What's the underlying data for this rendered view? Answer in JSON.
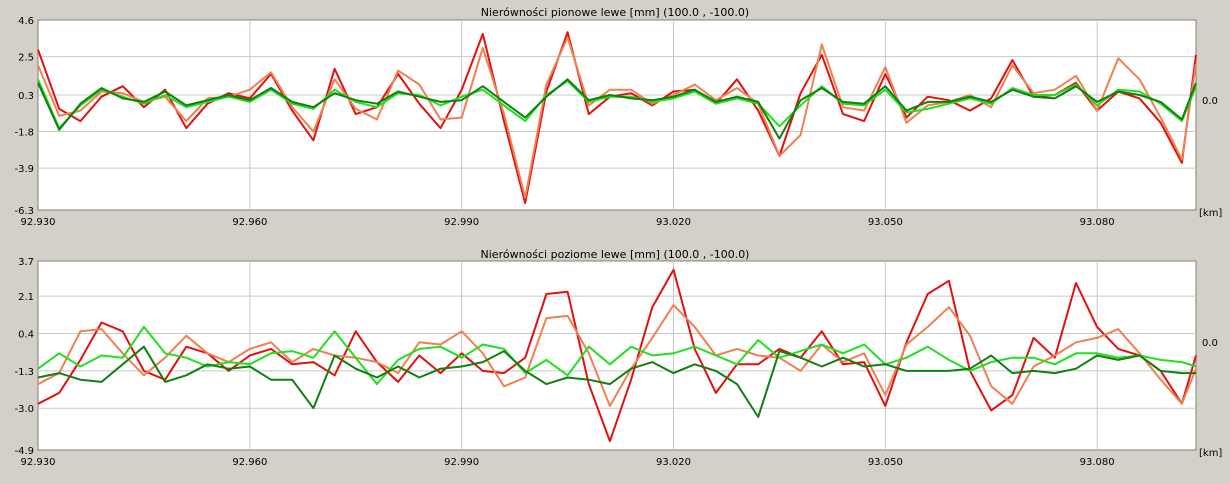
{
  "colors": {
    "background": "#d4d0c8",
    "plot_bg": "#ffffff",
    "grid": "#c8c8c8",
    "red": "#e31010",
    "orange": "#f08050",
    "light_green": "#20e020",
    "dark_green": "#108010"
  },
  "chart_data": [
    {
      "type": "line",
      "title": "Nierówności pionowe lewe [mm]  (100.0 , -100.0)",
      "xlabel": "[km]",
      "ylabel": "",
      "x_ticks": [
        "92.930",
        "92.960",
        "92.990",
        "93.020",
        "93.050",
        "93.080"
      ],
      "y_ticks": [
        "4.6",
        "2.5",
        "0.3",
        "-1.8",
        "-3.9",
        "-6.3"
      ],
      "right_label": "0.0",
      "xlim": [
        92.93,
        93.094
      ],
      "ylim": [
        -6.3,
        4.6
      ],
      "grid": true,
      "x": [
        92.93,
        92.933,
        92.936,
        92.939,
        92.942,
        92.945,
        92.948,
        92.951,
        92.954,
        92.957,
        92.96,
        92.963,
        92.966,
        92.969,
        92.972,
        92.975,
        92.978,
        92.981,
        92.984,
        92.987,
        92.99,
        92.993,
        92.996,
        92.999,
        93.002,
        93.005,
        93.008,
        93.011,
        93.014,
        93.017,
        93.02,
        93.023,
        93.026,
        93.029,
        93.032,
        93.035,
        93.038,
        93.041,
        93.044,
        93.047,
        93.05,
        93.053,
        93.056,
        93.059,
        93.062,
        93.065,
        93.068,
        93.071,
        93.074,
        93.077,
        93.08,
        93.083,
        93.086,
        93.089,
        93.092,
        93.094
      ],
      "series": [
        {
          "color": "#e31010",
          "values": [
            2.9,
            -0.5,
            -1.2,
            0.2,
            0.8,
            -0.4,
            0.6,
            -1.6,
            -0.2,
            0.4,
            0.1,
            1.5,
            -0.6,
            -2.3,
            1.8,
            -0.8,
            -0.4,
            1.5,
            -0.2,
            -1.6,
            0.6,
            3.8,
            -1.2,
            -5.9,
            0.5,
            3.9,
            -0.8,
            0.2,
            0.4,
            -0.3,
            0.5,
            0.6,
            -0.2,
            1.2,
            -0.6,
            -3.2,
            0.4,
            2.6,
            -0.8,
            -1.2,
            1.5,
            -1.0,
            0.2,
            0.0,
            -0.6,
            0.1,
            2.3,
            0.2,
            0.3,
            1.0,
            -0.6,
            0.5,
            0.1,
            -1.3,
            -3.6,
            2.6
          ]
        },
        {
          "color": "#f08050",
          "values": [
            2.0,
            -0.9,
            -0.6,
            0.5,
            0.4,
            -0.1,
            0.2,
            -1.2,
            0.1,
            0.2,
            0.6,
            1.6,
            -0.4,
            -1.8,
            1.2,
            -0.5,
            -1.1,
            1.7,
            0.9,
            -1.1,
            -1.0,
            3.0,
            -0.8,
            -5.6,
            0.9,
            3.6,
            -0.3,
            0.6,
            0.6,
            -0.2,
            0.3,
            0.9,
            0.0,
            0.7,
            -0.2,
            -3.2,
            -2.0,
            3.2,
            -0.4,
            -0.6,
            1.9,
            -1.3,
            -0.3,
            -0.1,
            0.3,
            -0.4,
            2.0,
            0.4,
            0.6,
            1.4,
            -0.6,
            2.4,
            1.2,
            -1.0,
            -3.4,
            2.1
          ]
        },
        {
          "color": "#20e020",
          "values": [
            1.2,
            -1.6,
            -0.3,
            0.6,
            0.2,
            -0.2,
            0.3,
            -0.4,
            -0.1,
            0.2,
            -0.1,
            0.6,
            -0.2,
            -0.5,
            0.6,
            -0.1,
            -0.4,
            0.4,
            0.3,
            -0.3,
            0.2,
            0.6,
            -0.3,
            -1.2,
            0.3,
            1.1,
            -0.1,
            0.2,
            0.2,
            -0.1,
            0.1,
            0.5,
            -0.2,
            0.1,
            -0.2,
            -1.5,
            -0.3,
            0.8,
            -0.2,
            -0.3,
            0.6,
            -0.7,
            -0.5,
            -0.2,
            0.1,
            -0.2,
            0.7,
            0.3,
            0.3,
            0.9,
            -0.3,
            0.6,
            0.5,
            -0.2,
            -1.2,
            0.8
          ]
        },
        {
          "color": "#108010",
          "values": [
            1.0,
            -1.7,
            -0.2,
            0.7,
            0.1,
            -0.1,
            0.5,
            -0.3,
            0.0,
            0.3,
            0.0,
            0.7,
            -0.1,
            -0.4,
            0.4,
            0.0,
            -0.2,
            0.5,
            0.2,
            -0.1,
            0.0,
            0.8,
            -0.1,
            -1.0,
            0.2,
            1.2,
            0.0,
            0.3,
            0.1,
            0.0,
            0.2,
            0.6,
            -0.1,
            0.2,
            -0.1,
            -2.2,
            0.0,
            0.7,
            -0.1,
            -0.2,
            0.8,
            -0.6,
            -0.1,
            -0.1,
            0.2,
            -0.1,
            0.6,
            0.2,
            0.1,
            0.8,
            -0.1,
            0.5,
            0.3,
            -0.1,
            -1.1,
            1.0
          ]
        }
      ]
    },
    {
      "type": "line",
      "title": "Nierówności poziome lewe [mm]  (100.0 , -100.0)",
      "xlabel": "[km]",
      "ylabel": "",
      "x_ticks": [
        "92.930",
        "92.960",
        "92.990",
        "93.020",
        "93.050",
        "93.080"
      ],
      "y_ticks": [
        "3.7",
        "2.1",
        "0.4",
        "-1.3",
        "-3.0",
        "-4.9"
      ],
      "right_label": "0.0",
      "xlim": [
        92.93,
        93.094
      ],
      "ylim": [
        -4.9,
        3.7
      ],
      "grid": true,
      "x": [
        92.93,
        92.933,
        92.936,
        92.939,
        92.942,
        92.945,
        92.948,
        92.951,
        92.954,
        92.957,
        92.96,
        92.963,
        92.966,
        92.969,
        92.972,
        92.975,
        92.978,
        92.981,
        92.984,
        92.987,
        92.99,
        92.993,
        92.996,
        92.999,
        93.002,
        93.005,
        93.008,
        93.011,
        93.014,
        93.017,
        93.02,
        93.023,
        93.026,
        93.029,
        93.032,
        93.035,
        93.038,
        93.041,
        93.044,
        93.047,
        93.05,
        93.053,
        93.056,
        93.059,
        93.062,
        93.065,
        93.068,
        93.071,
        93.074,
        93.077,
        93.08,
        93.083,
        93.086,
        93.089,
        93.092,
        93.094
      ],
      "series": [
        {
          "color": "#e31010",
          "values": [
            -2.8,
            -2.3,
            -0.8,
            0.9,
            0.5,
            -1.3,
            -1.7,
            -0.2,
            -0.5,
            -1.3,
            -0.6,
            -0.3,
            -1.0,
            -0.9,
            -1.5,
            0.5,
            -0.9,
            -1.8,
            -0.6,
            -1.4,
            -0.5,
            -1.3,
            -1.4,
            -0.7,
            2.2,
            2.3,
            -1.9,
            -4.5,
            -1.7,
            1.6,
            3.3,
            -0.3,
            -2.3,
            -1.0,
            -1.0,
            -0.3,
            -0.7,
            0.5,
            -1.0,
            -0.9,
            -2.9,
            0.0,
            2.2,
            2.8,
            -1.3,
            -3.1,
            -2.4,
            0.2,
            -0.7,
            2.7,
            0.7,
            -0.3,
            -0.6,
            -1.3,
            -2.8,
            -0.6
          ]
        },
        {
          "color": "#f08050",
          "values": [
            -1.9,
            -1.4,
            0.5,
            0.6,
            -0.5,
            -1.5,
            -0.7,
            0.3,
            -0.5,
            -0.9,
            -0.3,
            0.0,
            -0.9,
            -0.3,
            -0.6,
            -0.7,
            -0.9,
            -1.4,
            0.0,
            -0.1,
            0.5,
            -0.5,
            -2.0,
            -1.6,
            1.1,
            1.2,
            -0.5,
            -2.9,
            -1.2,
            0.2,
            1.7,
            0.7,
            -0.6,
            -0.3,
            -0.6,
            -0.7,
            -1.3,
            -0.1,
            -0.9,
            -0.5,
            -2.4,
            -0.1,
            0.7,
            1.6,
            0.3,
            -2.0,
            -2.8,
            -1.1,
            -0.6,
            0.0,
            0.2,
            0.6,
            -0.5,
            -1.7,
            -2.8,
            -1.2
          ]
        },
        {
          "color": "#20e020",
          "values": [
            -1.2,
            -0.5,
            -1.1,
            -0.6,
            -0.7,
            0.7,
            -0.5,
            -0.7,
            -1.1,
            -0.9,
            -1.0,
            -0.5,
            -0.4,
            -0.7,
            0.5,
            -0.7,
            -1.9,
            -0.8,
            -0.3,
            -0.2,
            -0.7,
            -0.1,
            -0.3,
            -1.4,
            -0.8,
            -1.5,
            -0.2,
            -1.0,
            -0.2,
            -0.6,
            -0.5,
            -0.2,
            -0.6,
            -1.0,
            0.1,
            -0.7,
            -0.4,
            -0.1,
            -0.5,
            -0.1,
            -1.0,
            -0.7,
            -0.2,
            -0.8,
            -1.3,
            -0.9,
            -0.7,
            -0.7,
            -1.0,
            -0.5,
            -0.5,
            -0.7,
            -0.6,
            -0.8,
            -0.9,
            -1.1
          ]
        },
        {
          "color": "#108010",
          "values": [
            -1.6,
            -1.4,
            -1.7,
            -1.8,
            -1.0,
            -0.2,
            -1.8,
            -1.5,
            -1.0,
            -1.2,
            -1.1,
            -1.7,
            -1.7,
            -3.0,
            -0.6,
            -1.2,
            -1.6,
            -1.1,
            -1.6,
            -1.2,
            -1.1,
            -0.9,
            -0.4,
            -1.3,
            -1.9,
            -1.6,
            -1.7,
            -1.9,
            -1.2,
            -0.9,
            -1.4,
            -1.0,
            -1.3,
            -1.9,
            -3.4,
            -0.4,
            -0.7,
            -1.1,
            -0.7,
            -1.1,
            -1.0,
            -1.3,
            -1.3,
            -1.3,
            -1.2,
            -0.6,
            -1.4,
            -1.3,
            -1.4,
            -1.2,
            -0.6,
            -0.8,
            -0.6,
            -1.3,
            -1.4,
            -1.4
          ]
        }
      ]
    }
  ]
}
